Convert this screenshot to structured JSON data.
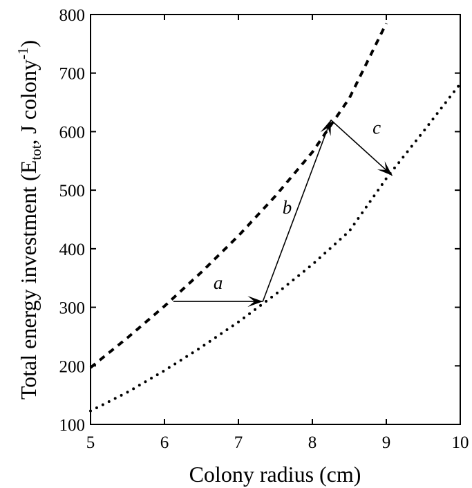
{
  "chart_data": {
    "type": "line",
    "xlabel": "Colony radius (cm)",
    "ylabel": {
      "main": "Total energy investment (E",
      "subscript": "tot",
      "middle": ", J colony",
      "superscript": "-1",
      "end": ")"
    },
    "xlim": [
      5,
      10
    ],
    "ylim": [
      100,
      800
    ],
    "x_ticks": [
      5,
      6,
      7,
      8,
      9,
      10
    ],
    "y_ticks": [
      100,
      200,
      300,
      400,
      500,
      600,
      700,
      800
    ],
    "grid": false,
    "legend": "none",
    "series": [
      {
        "style": "dashed",
        "x": [
          5.0,
          5.5,
          6.0,
          6.5,
          7.0,
          7.5,
          8.0,
          8.5,
          9.0
        ],
        "y": [
          197,
          248,
          302,
          360,
          422,
          490,
          565,
          657,
          785
        ]
      },
      {
        "style": "dotted",
        "x": [
          5.0,
          5.5,
          6.0,
          6.5,
          7.0,
          7.5,
          8.0,
          8.5,
          9.0,
          9.5,
          10.0
        ],
        "y": [
          123,
          155,
          192,
          232,
          275,
          322,
          373,
          430,
          520,
          600,
          682
        ]
      }
    ],
    "arrows": [
      {
        "label": "a",
        "from": [
          6.12,
          310
        ],
        "to": [
          7.33,
          310
        ]
      },
      {
        "label": "b",
        "from": [
          7.33,
          310
        ],
        "to": [
          8.25,
          620
        ]
      },
      {
        "label": "c",
        "from": [
          8.25,
          620
        ],
        "to": [
          9.08,
          525
        ]
      }
    ]
  }
}
